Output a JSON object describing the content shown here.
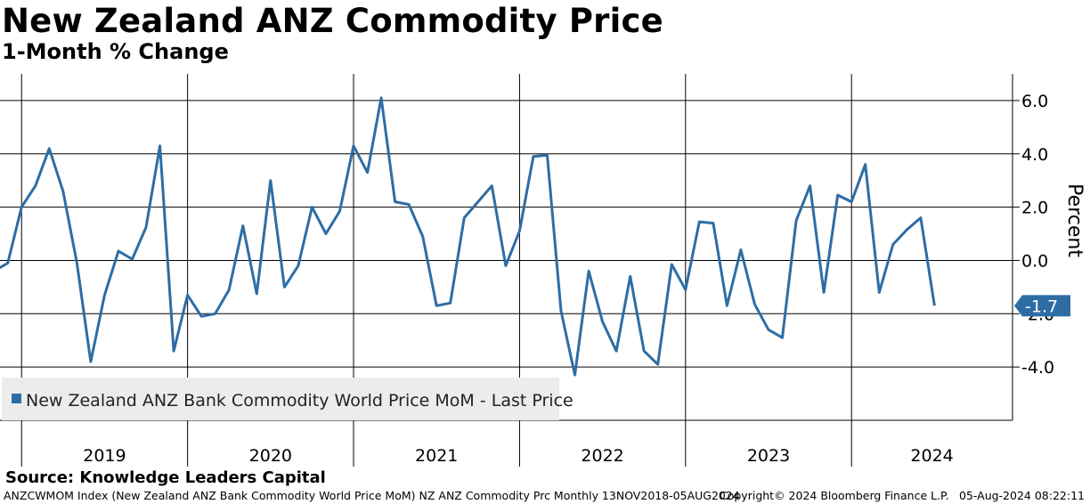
{
  "title": "New Zealand ANZ Commodity Price",
  "subtitle": "1-Month % Change",
  "source": "Source: Knowledge Leaders Capital",
  "footer": {
    "left": "ANZCWMOM Index (New Zealand ANZ Bank Commodity World Price MoM) NZ ANZ Commodity Prc  Monthly 13NOV2018-05AUG2024",
    "copyright": "Copyright© 2024 Bloomberg Finance L.P.",
    "timestamp": "05-Aug-2024 08:22:11"
  },
  "colors": {
    "line": "#2e6da4",
    "grid": "#000000",
    "legend_bg": "#ececec",
    "label_bg": "#2e6da4"
  },
  "chart_data": {
    "type": "line",
    "title": "New Zealand ANZ Commodity Price",
    "subtitle": "1-Month % Change",
    "xlabel": "",
    "ylabel": "Percent",
    "ylim": [
      -6.0,
      7.0
    ],
    "xlim": [
      2018.87,
      2024.97
    ],
    "y_ticks": [
      -4.0,
      -2.0,
      0.0,
      2.0,
      4.0,
      6.0
    ],
    "y_tick_labels": [
      "-4.0",
      "-2.0",
      "0.0",
      "2.0",
      "4.0",
      "6.0"
    ],
    "year_labels": [
      {
        "label": "2019",
        "start": 2019.0,
        "end": 2020.0
      },
      {
        "label": "2020",
        "start": 2020.0,
        "end": 2021.0
      },
      {
        "label": "2021",
        "start": 2021.0,
        "end": 2022.0
      },
      {
        "label": "2022",
        "start": 2022.0,
        "end": 2023.0
      },
      {
        "label": "2023",
        "start": 2023.0,
        "end": 2024.0
      },
      {
        "label": "2024",
        "start": 2024.0,
        "end": 2024.97
      }
    ],
    "year_boundaries": [
      2019.0,
      2020.0,
      2021.0,
      2022.0,
      2023.0,
      2024.0
    ],
    "legend": "New Zealand ANZ Bank Commodity World Price MoM - Last Price",
    "legend_position": "bottom-left",
    "last_value_label": "-1.7",
    "series": [
      {
        "name": "New Zealand ANZ Bank Commodity World Price MoM - Last Price",
        "start": "2018-11",
        "values": [
          -0.4,
          -0.1,
          2.0,
          2.8,
          4.2,
          2.6,
          -0.1,
          -3.8,
          -1.3,
          0.35,
          0.05,
          1.25,
          4.3,
          -3.4,
          -1.3,
          -2.1,
          -2.0,
          -1.1,
          1.3,
          -1.25,
          3.0,
          -1.0,
          -0.2,
          2.0,
          1.0,
          1.85,
          4.3,
          3.3,
          6.1,
          2.2,
          2.1,
          0.9,
          -1.7,
          -1.6,
          1.6,
          2.2,
          2.8,
          -0.2,
          1.1,
          3.9,
          3.95,
          -1.9,
          -4.3,
          -0.4,
          -2.3,
          -3.4,
          -0.6,
          -3.4,
          -3.9,
          -0.15,
          -1.1,
          1.45,
          1.4,
          -1.7,
          0.4,
          -1.65,
          -2.6,
          -2.9,
          1.5,
          2.8,
          -1.2,
          2.45,
          2.2,
          3.6,
          -1.2,
          0.6,
          1.15,
          1.6,
          -1.7
        ]
      }
    ]
  }
}
